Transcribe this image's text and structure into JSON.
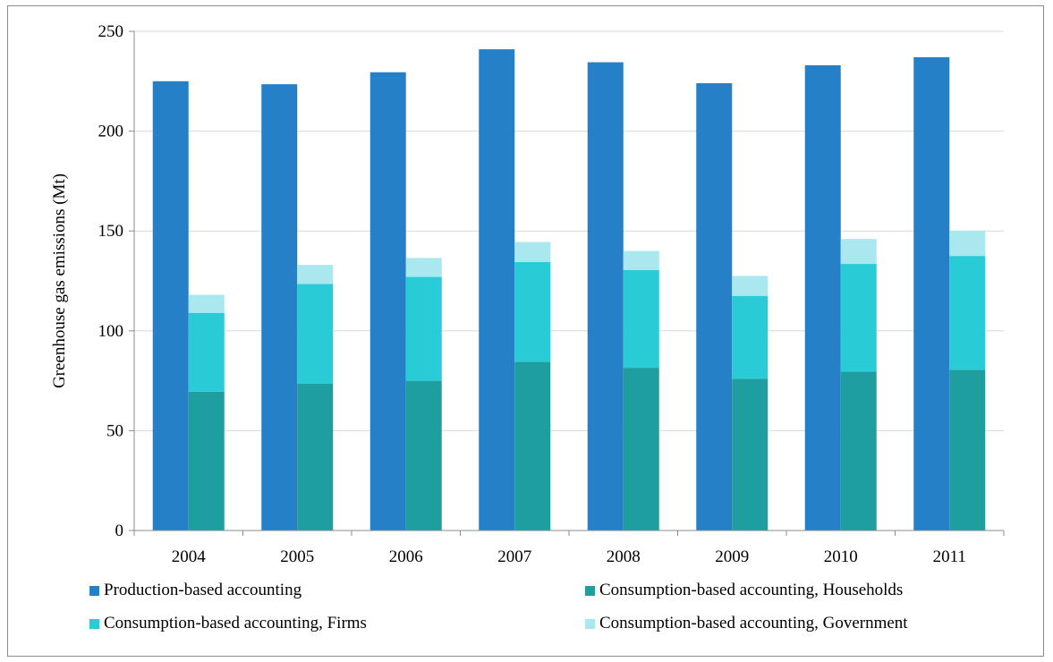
{
  "chart_data": {
    "type": "bar",
    "stacked_groups": true,
    "categories": [
      "2004",
      "2005",
      "2006",
      "2007",
      "2008",
      "2009",
      "2010",
      "2011"
    ],
    "series": [
      {
        "name": "Production-based accounting",
        "stack": "production",
        "color": "#2680c8",
        "values": [
          225,
          223.5,
          229.5,
          241,
          234.5,
          224,
          233,
          237
        ]
      },
      {
        "name": "Consumption-based accounting, Households",
        "stack": "consumption",
        "color": "#1f9ea0",
        "values": [
          69.5,
          73.5,
          75,
          84.5,
          81.5,
          76,
          79.5,
          80.5
        ]
      },
      {
        "name": "Consumption-based accounting, Firms",
        "stack": "consumption",
        "color": "#29ccd6",
        "values": [
          39.5,
          50,
          52,
          50,
          49,
          41.5,
          54,
          57
        ]
      },
      {
        "name": "Consumption-based accounting, Government",
        "stack": "consumption",
        "color": "#a8e8ee",
        "values": [
          9,
          9.5,
          9.5,
          10,
          9.5,
          10,
          12.5,
          12.5
        ]
      }
    ],
    "xlabel": "",
    "ylabel": "Greenhouse gas emissions (Mt)",
    "ylim": [
      0,
      250
    ],
    "yticks": [
      0,
      50,
      100,
      150,
      200,
      250
    ],
    "grid": true,
    "legend_position": "bottom"
  }
}
